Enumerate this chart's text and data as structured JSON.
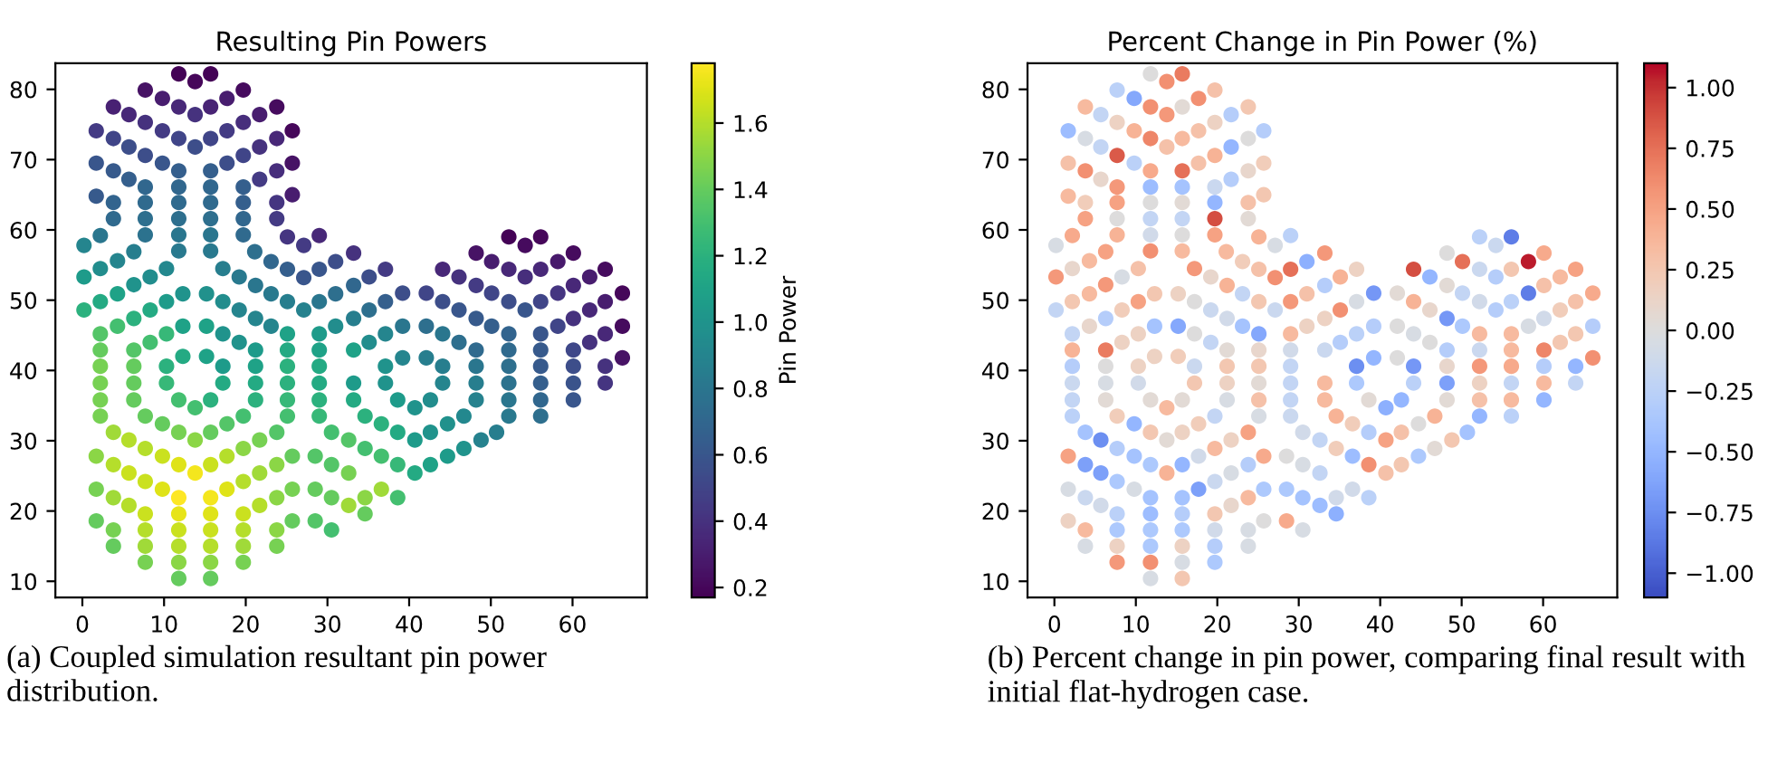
{
  "chart_data": [
    {
      "type": "scatter",
      "title": "Resulting Pin Powers",
      "clabel": "Pin Power",
      "marker": "circle",
      "grid": false,
      "xlim": [
        -3.3,
        69.1
      ],
      "ylim": [
        7.7,
        83.7
      ],
      "xticks": [
        0,
        10,
        20,
        30,
        40,
        50,
        60
      ],
      "yticks": [
        10,
        20,
        30,
        40,
        50,
        60,
        70,
        80
      ],
      "clim": [
        0.17,
        1.78
      ],
      "cticks": [
        {
          "value": 0.2,
          "label": "0.2"
        },
        {
          "value": 0.4,
          "label": "0.4"
        },
        {
          "value": 0.6,
          "label": "0.6"
        },
        {
          "value": 0.8,
          "label": "0.8"
        },
        {
          "value": 1.0,
          "label": "1.0"
        },
        {
          "value": 1.2,
          "label": "1.2"
        },
        {
          "value": 1.4,
          "label": "1.4"
        },
        {
          "value": 1.6,
          "label": "1.6"
        }
      ],
      "annotations": [
        "(a) Coupled simulation resultant pin power distribution."
      ],
      "x": [
        11.8,
        15.7,
        13.8,
        7.7,
        19.7,
        9.8,
        17.7,
        3.8,
        11.8,
        15.7,
        23.8,
        5.7,
        13.8,
        21.7,
        7.7,
        19.7,
        1.7,
        9.8,
        17.7,
        25.7,
        3.8,
        11.8,
        15.7,
        23.8,
        5.7,
        13.8,
        21.7,
        7.7,
        19.7,
        1.7,
        9.8,
        17.7,
        25.7,
        3.8,
        11.8,
        15.7,
        23.8,
        5.7,
        21.7,
        7.7,
        11.8,
        15.7,
        19.7,
        1.7,
        3.8,
        7.7,
        11.8,
        15.7,
        19.7,
        23.8,
        25.7,
        3.8,
        7.7,
        11.8,
        15.7,
        19.7,
        23.8,
        2.2,
        7.7,
        11.8,
        15.7,
        19.7,
        25.1,
        27.1,
        29.0,
        0.2,
        6.3,
        11.8,
        15.7,
        21.1,
        23.1,
        25.1,
        27.1,
        29.0,
        31.0,
        2.2,
        4.3,
        10.3,
        17.2,
        19.2,
        21.2,
        23.1,
        25.1,
        27.1,
        29.0,
        31.0,
        0.2,
        6.3,
        8.3,
        0.2,
        2.2,
        4.3,
        10.3,
        12.3,
        15.2,
        17.2,
        19.2,
        21.2,
        23.1,
        6.3,
        8.3,
        2.2,
        4.3,
        8.3,
        10.3,
        12.3,
        15.2,
        17.2,
        19.2,
        21.2,
        25.1,
        29.0,
        31.0,
        2.2,
        6.3,
        10.3,
        12.3,
        15.2,
        17.2,
        21.2,
        25.1,
        29.0,
        2.2,
        6.3,
        21.2,
        25.1,
        29.0,
        2.2,
        6.3,
        10.3,
        17.2,
        25.1,
        29.0,
        2.2,
        6.3,
        11.8,
        13.8,
        15.7,
        21.2,
        25.1,
        29.0,
        2.2,
        7.7,
        9.8,
        11.8,
        13.8,
        15.7,
        17.7,
        19.7,
        25.1,
        29.0,
        3.8,
        5.7,
        7.7,
        9.8,
        11.8,
        13.8,
        15.7,
        17.7,
        19.7,
        21.7,
        23.8,
        30.5,
        1.7,
        3.8,
        5.7,
        7.7,
        9.8,
        11.8,
        15.7,
        17.7,
        19.7,
        21.7,
        23.8,
        25.7,
        28.5,
        30.5,
        1.7,
        3.8,
        5.7,
        7.7,
        11.8,
        15.7,
        19.7,
        21.7,
        23.8,
        25.7,
        28.5,
        30.5,
        1.7,
        3.8,
        7.7,
        11.8,
        15.7,
        19.7,
        23.8,
        25.7,
        28.5,
        30.5,
        3.8,
        7.7,
        11.8,
        15.7,
        19.7,
        23.8,
        7.7,
        11.8,
        15.7,
        19.7,
        11.8,
        15.7,
        52.2,
        56.1,
        54.2,
        48.2,
        50.1,
        52.2,
        54.2,
        56.1,
        58.2,
        60.1,
        33.2,
        35.1,
        37.1,
        44.1,
        46.1,
        48.2,
        50.1,
        52.2,
        54.2,
        56.1,
        58.2,
        60.1,
        62.1,
        64.0,
        33.2,
        35.1,
        37.1,
        39.2,
        42.1,
        44.1,
        46.1,
        48.2,
        50.1,
        52.2,
        56.1,
        58.2,
        60.1,
        62.1,
        64.0,
        66.1,
        33.2,
        35.1,
        37.1,
        39.2,
        42.1,
        44.1,
        46.1,
        48.2,
        52.2,
        56.1,
        60.1,
        62.1,
        64.0,
        66.1,
        33.2,
        37.1,
        39.2,
        42.1,
        44.1,
        48.2,
        52.2,
        56.1,
        60.1,
        64.0,
        66.1,
        33.2,
        37.1,
        44.1,
        48.2,
        52.2,
        56.1,
        60.1,
        64.0,
        33.2,
        38.6,
        40.7,
        42.6,
        48.2,
        52.2,
        56.1,
        60.1,
        34.6,
        46.7,
        52.2,
        56.1,
        32.6,
        34.6,
        36.6,
        38.6,
        40.7,
        42.6,
        44.7,
        48.8,
        50.7,
        32.6,
        36.6,
        38.6,
        40.7,
        42.6,
        44.7,
        46.7,
        32.6,
        34.6,
        36.6,
        38.6,
        34.6
      ],
      "values": [
        82.2,
        82.2,
        81.1,
        79.9,
        79.9,
        78.7,
        78.7,
        77.5,
        77.5,
        77.5,
        77.5,
        76.4,
        76.4,
        76.4,
        75.3,
        75.3,
        74.1,
        74.1,
        74.1,
        74.1,
        73.0,
        73.0,
        73.0,
        73.0,
        71.8,
        71.8,
        71.8,
        70.6,
        70.6,
        69.5,
        69.5,
        69.5,
        69.5,
        68.4,
        68.4,
        68.4,
        68.4,
        67.2,
        67.2,
        66.1,
        66.1,
        66.1,
        66.1,
        64.8,
        63.9,
        63.9,
        63.9,
        63.9,
        63.9,
        63.9,
        65.0,
        61.6,
        61.6,
        61.6,
        61.6,
        61.6,
        61.6,
        59.2,
        59.3,
        59.3,
        59.3,
        59.3,
        59.0,
        57.8,
        59.2,
        57.8,
        56.9,
        57.0,
        57.0,
        56.9,
        55.5,
        54.4,
        53.2,
        54.4,
        55.5,
        54.5,
        55.6,
        54.5,
        54.5,
        53.3,
        52.1,
        50.9,
        49.8,
        48.6,
        49.8,
        50.9,
        53.3,
        52.2,
        53.3,
        48.6,
        49.8,
        50.9,
        49.8,
        50.9,
        50.9,
        49.8,
        48.6,
        47.4,
        46.3,
        47.4,
        48.6,
        45.2,
        46.3,
        44.0,
        45.2,
        46.3,
        46.3,
        45.2,
        44.0,
        42.9,
        45.2,
        45.2,
        46.3,
        42.9,
        42.9,
        40.6,
        42.0,
        42.0,
        40.6,
        40.6,
        42.9,
        42.9,
        40.6,
        40.6,
        38.2,
        40.6,
        40.6,
        38.2,
        38.2,
        38.2,
        38.2,
        38.2,
        38.2,
        35.8,
        35.8,
        35.8,
        34.7,
        35.8,
        35.8,
        35.8,
        35.8,
        33.5,
        33.5,
        32.4,
        31.2,
        30.1,
        31.2,
        32.4,
        33.5,
        33.5,
        33.5,
        31.2,
        30.1,
        28.9,
        27.8,
        26.6,
        25.4,
        26.6,
        27.8,
        28.9,
        30.1,
        31.2,
        31.2,
        27.8,
        26.6,
        25.4,
        24.2,
        23.1,
        21.9,
        21.9,
        23.1,
        24.2,
        25.4,
        26.6,
        27.8,
        27.8,
        26.6,
        23.1,
        21.9,
        20.8,
        19.6,
        19.6,
        19.6,
        19.6,
        20.8,
        21.9,
        23.1,
        23.1,
        21.9,
        18.6,
        17.3,
        17.3,
        17.3,
        17.3,
        17.3,
        17.3,
        18.6,
        18.6,
        17.3,
        15.0,
        15.0,
        15.0,
        15.0,
        15.0,
        15.0,
        12.7,
        12.7,
        12.7,
        12.7,
        10.4,
        10.4,
        59.0,
        59.0,
        57.8,
        56.7,
        55.5,
        54.4,
        53.3,
        54.4,
        55.5,
        56.7,
        56.7,
        53.3,
        54.4,
        54.4,
        53.3,
        52.1,
        51.0,
        49.8,
        48.6,
        49.8,
        51.0,
        52.1,
        53.3,
        54.4,
        52.1,
        48.6,
        49.8,
        51.0,
        51.0,
        49.8,
        48.6,
        47.4,
        46.3,
        45.2,
        45.2,
        46.3,
        47.4,
        48.6,
        49.8,
        51.0,
        47.4,
        44.0,
        45.2,
        46.3,
        46.3,
        45.2,
        44.0,
        42.9,
        42.9,
        42.9,
        42.9,
        44.0,
        45.2,
        46.3,
        42.9,
        40.6,
        41.8,
        41.8,
        40.6,
        40.6,
        40.6,
        40.6,
        40.6,
        40.6,
        41.8,
        38.2,
        38.2,
        38.2,
        38.2,
        38.2,
        38.2,
        38.2,
        38.2,
        35.8,
        35.8,
        34.7,
        35.8,
        35.8,
        35.8,
        35.8,
        35.8,
        33.5,
        33.5,
        33.5,
        33.5,
        30.1,
        28.9,
        32.4,
        31.2,
        30.1,
        31.2,
        32.4,
        30.1,
        31.2,
        25.4,
        27.8,
        26.6,
        25.4,
        26.6,
        27.8,
        28.9,
        20.8,
        21.9,
        23.1,
        21.9,
        19.6
      ],
      "cvalues": [
        0.18,
        0.18,
        0.2,
        0.25,
        0.22,
        0.3,
        0.3,
        0.32,
        0.35,
        0.33,
        0.22,
        0.35,
        0.4,
        0.3,
        0.4,
        0.38,
        0.45,
        0.45,
        0.45,
        0.2,
        0.5,
        0.5,
        0.5,
        0.35,
        0.55,
        0.55,
        0.4,
        0.55,
        0.5,
        0.6,
        0.6,
        0.55,
        0.25,
        0.62,
        0.65,
        0.65,
        0.38,
        0.65,
        0.45,
        0.7,
        0.7,
        0.7,
        0.65,
        0.62,
        0.68,
        0.72,
        0.72,
        0.72,
        0.65,
        0.42,
        0.3,
        0.72,
        0.75,
        0.75,
        0.75,
        0.7,
        0.45,
        0.8,
        0.78,
        0.8,
        0.8,
        0.72,
        0.42,
        0.45,
        0.35,
        0.9,
        0.85,
        0.82,
        0.82,
        0.75,
        0.7,
        0.65,
        0.6,
        0.6,
        0.55,
        0.95,
        0.9,
        0.92,
        0.85,
        0.82,
        0.8,
        0.82,
        0.85,
        0.88,
        0.8,
        0.75,
        1.05,
        1.0,
        0.95,
        1.2,
        1.15,
        1.1,
        1.05,
        1.0,
        0.98,
        0.95,
        0.9,
        0.9,
        0.9,
        1.2,
        1.15,
        1.35,
        1.3,
        1.3,
        1.25,
        1.1,
        1.1,
        1.0,
        1.0,
        1.05,
        1.1,
        1.05,
        0.95,
        1.4,
        1.35,
        1.2,
        1.15,
        1.1,
        1.05,
        1.1,
        1.15,
        1.1,
        1.45,
        1.4,
        1.15,
        1.2,
        1.15,
        1.45,
        1.4,
        1.25,
        1.15,
        1.2,
        1.15,
        1.45,
        1.4,
        1.3,
        1.3,
        1.2,
        1.2,
        1.25,
        1.2,
        1.45,
        1.4,
        1.4,
        1.45,
        1.5,
        1.4,
        1.35,
        1.3,
        1.3,
        1.25,
        1.55,
        1.6,
        1.6,
        1.65,
        1.7,
        1.75,
        1.65,
        1.6,
        1.5,
        1.45,
        1.35,
        1.3,
        1.5,
        1.6,
        1.65,
        1.65,
        1.7,
        1.78,
        1.75,
        1.7,
        1.6,
        1.55,
        1.5,
        1.4,
        1.35,
        1.35,
        1.45,
        1.55,
        1.6,
        1.65,
        1.72,
        1.7,
        1.65,
        1.6,
        1.5,
        1.45,
        1.4,
        1.4,
        1.4,
        1.45,
        1.6,
        1.65,
        1.65,
        1.6,
        1.5,
        1.4,
        1.35,
        1.3,
        1.4,
        1.55,
        1.6,
        1.6,
        1.55,
        1.45,
        1.45,
        1.5,
        1.5,
        1.45,
        1.4,
        1.4,
        0.18,
        0.2,
        0.22,
        0.25,
        0.3,
        0.35,
        0.38,
        0.35,
        0.28,
        0.22,
        0.4,
        0.55,
        0.45,
        0.35,
        0.4,
        0.45,
        0.5,
        0.55,
        0.6,
        0.5,
        0.42,
        0.35,
        0.3,
        0.22,
        0.7,
        0.75,
        0.65,
        0.55,
        0.5,
        0.55,
        0.6,
        0.62,
        0.65,
        0.68,
        0.6,
        0.5,
        0.4,
        0.35,
        0.3,
        0.2,
        0.85,
        0.95,
        0.9,
        0.8,
        0.75,
        0.8,
        0.75,
        0.72,
        0.72,
        0.62,
        0.52,
        0.4,
        0.35,
        0.22,
        1.1,
        1.0,
        0.9,
        0.85,
        0.85,
        0.8,
        0.75,
        0.62,
        0.55,
        0.4,
        0.25,
        1.05,
        1.0,
        0.9,
        0.85,
        0.78,
        0.65,
        0.58,
        0.42,
        1.15,
        1.05,
        1.0,
        0.95,
        0.88,
        0.8,
        0.7,
        0.6,
        1.2,
        0.92,
        0.82,
        0.75,
        1.35,
        1.3,
        1.2,
        1.15,
        1.05,
        1.0,
        0.98,
        0.88,
        0.85,
        1.45,
        1.3,
        1.25,
        1.15,
        1.1,
        1.05,
        1.0,
        1.55,
        1.5,
        1.55,
        1.3,
        1.4
      ]
    },
    {
      "type": "scatter",
      "title": "Percent Change in Pin Power (%)",
      "marker": "circle",
      "grid": false,
      "xlim": [
        -3.3,
        69.1
      ],
      "ylim": [
        7.7,
        83.7
      ],
      "xticks": [
        0,
        10,
        20,
        30,
        40,
        50,
        60
      ],
      "yticks": [
        10,
        20,
        30,
        40,
        50,
        60,
        70,
        80
      ],
      "clim": [
        -1.1,
        1.1
      ],
      "cticks": [
        {
          "value": -1.0,
          "label": "−1.00"
        },
        {
          "value": -0.75,
          "label": "−0.75"
        },
        {
          "value": -0.5,
          "label": "−0.50"
        },
        {
          "value": -0.25,
          "label": "−0.25"
        },
        {
          "value": 0.0,
          "label": "0.00"
        },
        {
          "value": 0.25,
          "label": "0.25"
        },
        {
          "value": 0.5,
          "label": "0.50"
        },
        {
          "value": 0.75,
          "label": "0.75"
        },
        {
          "value": 1.0,
          "label": "1.00"
        }
      ],
      "annotations": [
        "(b) Percent change in pin power, comparing final result with initial flat-hydrogen case."
      ],
      "x": [
        11.8,
        15.7,
        13.8,
        7.7,
        19.7,
        9.8,
        17.7,
        3.8,
        11.8,
        15.7,
        23.8,
        5.7,
        13.8,
        21.7,
        7.7,
        19.7,
        1.7,
        9.8,
        17.7,
        25.7,
        3.8,
        11.8,
        15.7,
        23.8,
        5.7,
        13.8,
        21.7,
        7.7,
        19.7,
        1.7,
        9.8,
        17.7,
        25.7,
        3.8,
        11.8,
        15.7,
        23.8,
        5.7,
        21.7,
        7.7,
        11.8,
        15.7,
        19.7,
        1.7,
        3.8,
        7.7,
        11.8,
        15.7,
        19.7,
        23.8,
        25.7,
        3.8,
        7.7,
        11.8,
        15.7,
        19.7,
        23.8,
        2.2,
        7.7,
        11.8,
        15.7,
        19.7,
        25.1,
        27.1,
        29.0,
        0.2,
        6.3,
        11.8,
        15.7,
        21.1,
        23.1,
        25.1,
        27.1,
        29.0,
        31.0,
        2.2,
        4.3,
        10.3,
        17.2,
        19.2,
        21.2,
        23.1,
        25.1,
        27.1,
        29.0,
        31.0,
        0.2,
        6.3,
        8.3,
        0.2,
        2.2,
        4.3,
        10.3,
        12.3,
        15.2,
        17.2,
        19.2,
        21.2,
        23.1,
        6.3,
        8.3,
        2.2,
        4.3,
        8.3,
        10.3,
        12.3,
        15.2,
        17.2,
        19.2,
        21.2,
        25.1,
        29.0,
        31.0,
        2.2,
        6.3,
        10.3,
        12.3,
        15.2,
        17.2,
        21.2,
        25.1,
        29.0,
        2.2,
        6.3,
        21.2,
        25.1,
        29.0,
        2.2,
        6.3,
        10.3,
        17.2,
        25.1,
        29.0,
        2.2,
        6.3,
        11.8,
        13.8,
        15.7,
        21.2,
        25.1,
        29.0,
        2.2,
        7.7,
        9.8,
        11.8,
        13.8,
        15.7,
        17.7,
        19.7,
        25.1,
        29.0,
        3.8,
        5.7,
        7.7,
        9.8,
        11.8,
        13.8,
        15.7,
        17.7,
        19.7,
        21.7,
        23.8,
        30.5,
        1.7,
        3.8,
        5.7,
        7.7,
        9.8,
        11.8,
        15.7,
        17.7,
        19.7,
        21.7,
        23.8,
        25.7,
        28.5,
        30.5,
        1.7,
        3.8,
        5.7,
        7.7,
        11.8,
        15.7,
        19.7,
        21.7,
        23.8,
        25.7,
        28.5,
        30.5,
        1.7,
        3.8,
        7.7,
        11.8,
        15.7,
        19.7,
        23.8,
        25.7,
        28.5,
        30.5,
        3.8,
        7.7,
        11.8,
        15.7,
        19.7,
        23.8,
        7.7,
        11.8,
        15.7,
        19.7,
        11.8,
        15.7,
        52.2,
        56.1,
        54.2,
        48.2,
        50.1,
        52.2,
        54.2,
        56.1,
        58.2,
        60.1,
        33.2,
        35.1,
        37.1,
        44.1,
        46.1,
        48.2,
        50.1,
        52.2,
        54.2,
        56.1,
        58.2,
        60.1,
        62.1,
        64.0,
        33.2,
        35.1,
        37.1,
        39.2,
        42.1,
        44.1,
        46.1,
        48.2,
        50.1,
        52.2,
        56.1,
        58.2,
        60.1,
        62.1,
        64.0,
        66.1,
        33.2,
        35.1,
        37.1,
        39.2,
        42.1,
        44.1,
        46.1,
        48.2,
        52.2,
        56.1,
        60.1,
        62.1,
        64.0,
        66.1,
        33.2,
        37.1,
        39.2,
        42.1,
        44.1,
        48.2,
        52.2,
        56.1,
        60.1,
        64.0,
        66.1,
        33.2,
        37.1,
        44.1,
        48.2,
        52.2,
        56.1,
        60.1,
        64.0,
        33.2,
        38.6,
        40.7,
        42.6,
        48.2,
        52.2,
        56.1,
        60.1,
        34.6,
        46.7,
        52.2,
        56.1,
        32.6,
        34.6,
        36.6,
        38.6,
        40.7,
        42.6,
        44.7,
        48.8,
        50.7,
        32.6,
        36.6,
        38.6,
        40.7,
        42.6,
        44.7,
        46.7,
        32.6,
        34.6,
        36.6,
        38.6,
        34.6
      ],
      "values": [
        82.2,
        82.2,
        81.1,
        79.9,
        79.9,
        78.7,
        78.7,
        77.5,
        77.5,
        77.5,
        77.5,
        76.4,
        76.4,
        76.4,
        75.3,
        75.3,
        74.1,
        74.1,
        74.1,
        74.1,
        73.0,
        73.0,
        73.0,
        73.0,
        71.8,
        71.8,
        71.8,
        70.6,
        70.6,
        69.5,
        69.5,
        69.5,
        69.5,
        68.4,
        68.4,
        68.4,
        68.4,
        67.2,
        67.2,
        66.1,
        66.1,
        66.1,
        66.1,
        64.8,
        63.9,
        63.9,
        63.9,
        63.9,
        63.9,
        63.9,
        65.0,
        61.6,
        61.6,
        61.6,
        61.6,
        61.6,
        61.6,
        59.2,
        59.3,
        59.3,
        59.3,
        59.3,
        59.0,
        57.8,
        59.2,
        57.8,
        56.9,
        57.0,
        57.0,
        56.9,
        55.5,
        54.4,
        53.2,
        54.4,
        55.5,
        54.5,
        55.6,
        54.5,
        54.5,
        53.3,
        52.1,
        50.9,
        49.8,
        48.6,
        49.8,
        50.9,
        53.3,
        52.2,
        53.3,
        48.6,
        49.8,
        50.9,
        49.8,
        50.9,
        50.9,
        49.8,
        48.6,
        47.4,
        46.3,
        47.4,
        48.6,
        45.2,
        46.3,
        44.0,
        45.2,
        46.3,
        46.3,
        45.2,
        44.0,
        42.9,
        45.2,
        45.2,
        46.3,
        42.9,
        42.9,
        40.6,
        42.0,
        42.0,
        40.6,
        40.6,
        42.9,
        42.9,
        40.6,
        40.6,
        38.2,
        40.6,
        40.6,
        38.2,
        38.2,
        38.2,
        38.2,
        38.2,
        38.2,
        35.8,
        35.8,
        35.8,
        34.7,
        35.8,
        35.8,
        35.8,
        35.8,
        33.5,
        33.5,
        32.4,
        31.2,
        30.1,
        31.2,
        32.4,
        33.5,
        33.5,
        33.5,
        31.2,
        30.1,
        28.9,
        27.8,
        26.6,
        25.4,
        26.6,
        27.8,
        28.9,
        30.1,
        31.2,
        31.2,
        27.8,
        26.6,
        25.4,
        24.2,
        23.1,
        21.9,
        21.9,
        23.1,
        24.2,
        25.4,
        26.6,
        27.8,
        27.8,
        26.6,
        23.1,
        21.9,
        20.8,
        19.6,
        19.6,
        19.6,
        19.6,
        20.8,
        21.9,
        23.1,
        23.1,
        21.9,
        18.6,
        17.3,
        17.3,
        17.3,
        17.3,
        17.3,
        17.3,
        18.6,
        18.6,
        17.3,
        15.0,
        15.0,
        15.0,
        15.0,
        15.0,
        15.0,
        12.7,
        12.7,
        12.7,
        12.7,
        10.4,
        10.4,
        59.0,
        59.0,
        57.8,
        56.7,
        55.5,
        54.4,
        53.3,
        54.4,
        55.5,
        56.7,
        56.7,
        53.3,
        54.4,
        54.4,
        53.3,
        52.1,
        51.0,
        49.8,
        48.6,
        49.8,
        51.0,
        52.1,
        53.3,
        54.4,
        52.1,
        48.6,
        49.8,
        51.0,
        51.0,
        49.8,
        48.6,
        47.4,
        46.3,
        45.2,
        45.2,
        46.3,
        47.4,
        48.6,
        49.8,
        51.0,
        47.4,
        44.0,
        45.2,
        46.3,
        46.3,
        45.2,
        44.0,
        42.9,
        42.9,
        42.9,
        42.9,
        44.0,
        45.2,
        46.3,
        42.9,
        40.6,
        41.8,
        41.8,
        40.6,
        40.6,
        40.6,
        40.6,
        40.6,
        40.6,
        41.8,
        38.2,
        38.2,
        38.2,
        38.2,
        38.2,
        38.2,
        38.2,
        38.2,
        35.8,
        35.8,
        34.7,
        35.8,
        35.8,
        35.8,
        35.8,
        35.8,
        33.5,
        33.5,
        33.5,
        33.5,
        30.1,
        28.9,
        32.4,
        31.2,
        30.1,
        31.2,
        32.4,
        30.1,
        31.2,
        25.4,
        27.8,
        26.6,
        25.4,
        26.6,
        27.8,
        28.9,
        20.8,
        21.9,
        23.1,
        21.9,
        19.6
      ],
      "cvalues": [
        0.0,
        0.7,
        0.6,
        -0.25,
        0.3,
        -0.6,
        0.6,
        0.35,
        0.6,
        0.05,
        0.25,
        -0.2,
        0.55,
        -0.3,
        0.15,
        0.15,
        -0.45,
        0.4,
        0.3,
        -0.3,
        -0.05,
        0.65,
        0.35,
        0.0,
        -0.2,
        0.3,
        -0.5,
        0.85,
        0.4,
        0.3,
        -0.25,
        0.3,
        0.2,
        0.6,
        0.45,
        0.75,
        0.1,
        0.1,
        -0.3,
        0.55,
        -0.45,
        -0.4,
        -0.15,
        0.35,
        0.2,
        0.5,
        0.0,
        0.05,
        -0.5,
        0.3,
        0.25,
        0.5,
        0.0,
        -0.2,
        -0.2,
        0.9,
        0.05,
        0.45,
        0.4,
        -0.1,
        0.0,
        0.5,
        0.4,
        -0.05,
        -0.25,
        -0.05,
        0.5,
        0.6,
        0.35,
        0.35,
        0.2,
        0.3,
        0.6,
        0.75,
        -0.55,
        0.1,
        0.35,
        0.3,
        0.55,
        0.1,
        0.4,
        -0.2,
        0.25,
        -0.15,
        0.55,
        0.3,
        0.55,
        0.55,
        -0.05,
        -0.2,
        0.25,
        0.35,
        0.5,
        0.25,
        0.15,
        0.0,
        -0.15,
        -0.1,
        -0.4,
        -0.3,
        0.2,
        -0.2,
        0.1,
        0.15,
        0.15,
        -0.4,
        -0.6,
        0.0,
        -0.2,
        0.05,
        -0.6,
        0.35,
        0.15,
        0.4,
        0.7,
        0.15,
        0.15,
        0.2,
        -0.15,
        0.25,
        0.1,
        -0.1,
        -0.3,
        0.0,
        0.15,
        0.25,
        -0.2,
        -0.15,
        -0.05,
        -0.1,
        0.25,
        0.05,
        -0.2,
        -0.2,
        0.05,
        0.05,
        0.35,
        0.05,
        -0.05,
        0.3,
        -0.2,
        -0.25,
        0.2,
        -0.5,
        0.25,
        0.05,
        0.15,
        0.2,
        -0.2,
        -0.05,
        -0.15,
        -0.4,
        -0.75,
        -0.3,
        -0.4,
        -0.35,
        0.4,
        -0.5,
        -0.1,
        0.35,
        0.15,
        0.5,
        -0.1,
        0.5,
        -0.65,
        -0.65,
        -0.35,
        -0.05,
        -0.4,
        -0.4,
        -0.65,
        -0.15,
        -0.05,
        -0.3,
        0.45,
        0.0,
        -0.05,
        -0.05,
        -0.15,
        -0.1,
        -0.25,
        -0.45,
        -0.3,
        0.25,
        0.1,
        0.35,
        -0.35,
        -0.35,
        -0.4,
        0.15,
        0.35,
        -0.35,
        -0.35,
        -0.35,
        -0.1,
        -0.05,
        0.0,
        0.45,
        -0.05,
        -0.05,
        0.15,
        -0.35,
        0.15,
        -0.3,
        -0.05,
        0.55,
        0.6,
        -0.05,
        -0.35,
        -0.05,
        0.25,
        -0.25,
        -0.85,
        -0.15,
        0.0,
        0.75,
        -0.15,
        -0.3,
        0.25,
        1.05,
        0.45,
        0.55,
        0.4,
        0.15,
        0.9,
        -0.5,
        0.05,
        -0.2,
        -0.1,
        -0.3,
        -0.25,
        -0.85,
        0.3,
        0.35,
        0.5,
        -0.3,
        0.6,
        -0.05,
        -0.7,
        0.05,
        0.4,
        0.1,
        -0.7,
        -0.35,
        0.35,
        0.35,
        -0.05,
        -0.1,
        0.2,
        0.3,
        0.45,
        0.15,
        -0.3,
        -0.25,
        -0.3,
        0.0,
        -0.05,
        0.0,
        -0.3,
        -0.15,
        0.35,
        0.65,
        0.25,
        0.25,
        -0.3,
        -0.15,
        -0.75,
        -0.5,
        0.0,
        -0.7,
        0.1,
        0.55,
        0.45,
        -0.3,
        -0.5,
        0.6,
        0.35,
        -0.35,
        -0.25,
        -0.65,
        0.15,
        -0.2,
        0.35,
        -0.2,
        0.35,
        0.05,
        -0.55,
        -0.5,
        0.05,
        0.3,
        0.35,
        -0.5,
        0.4,
        0.4,
        -0.5,
        -0.25,
        -0.2,
        0.2,
        0.2,
        -0.3,
        0.5,
        0.3,
        0.0,
        0.25,
        -0.4,
        -0.2,
        -0.45,
        0.6,
        0.3,
        0.25,
        -0.35,
        0.05,
        -0.45,
        -0.1,
        -0.1,
        -0.25,
        -0.55
      ]
    }
  ]
}
